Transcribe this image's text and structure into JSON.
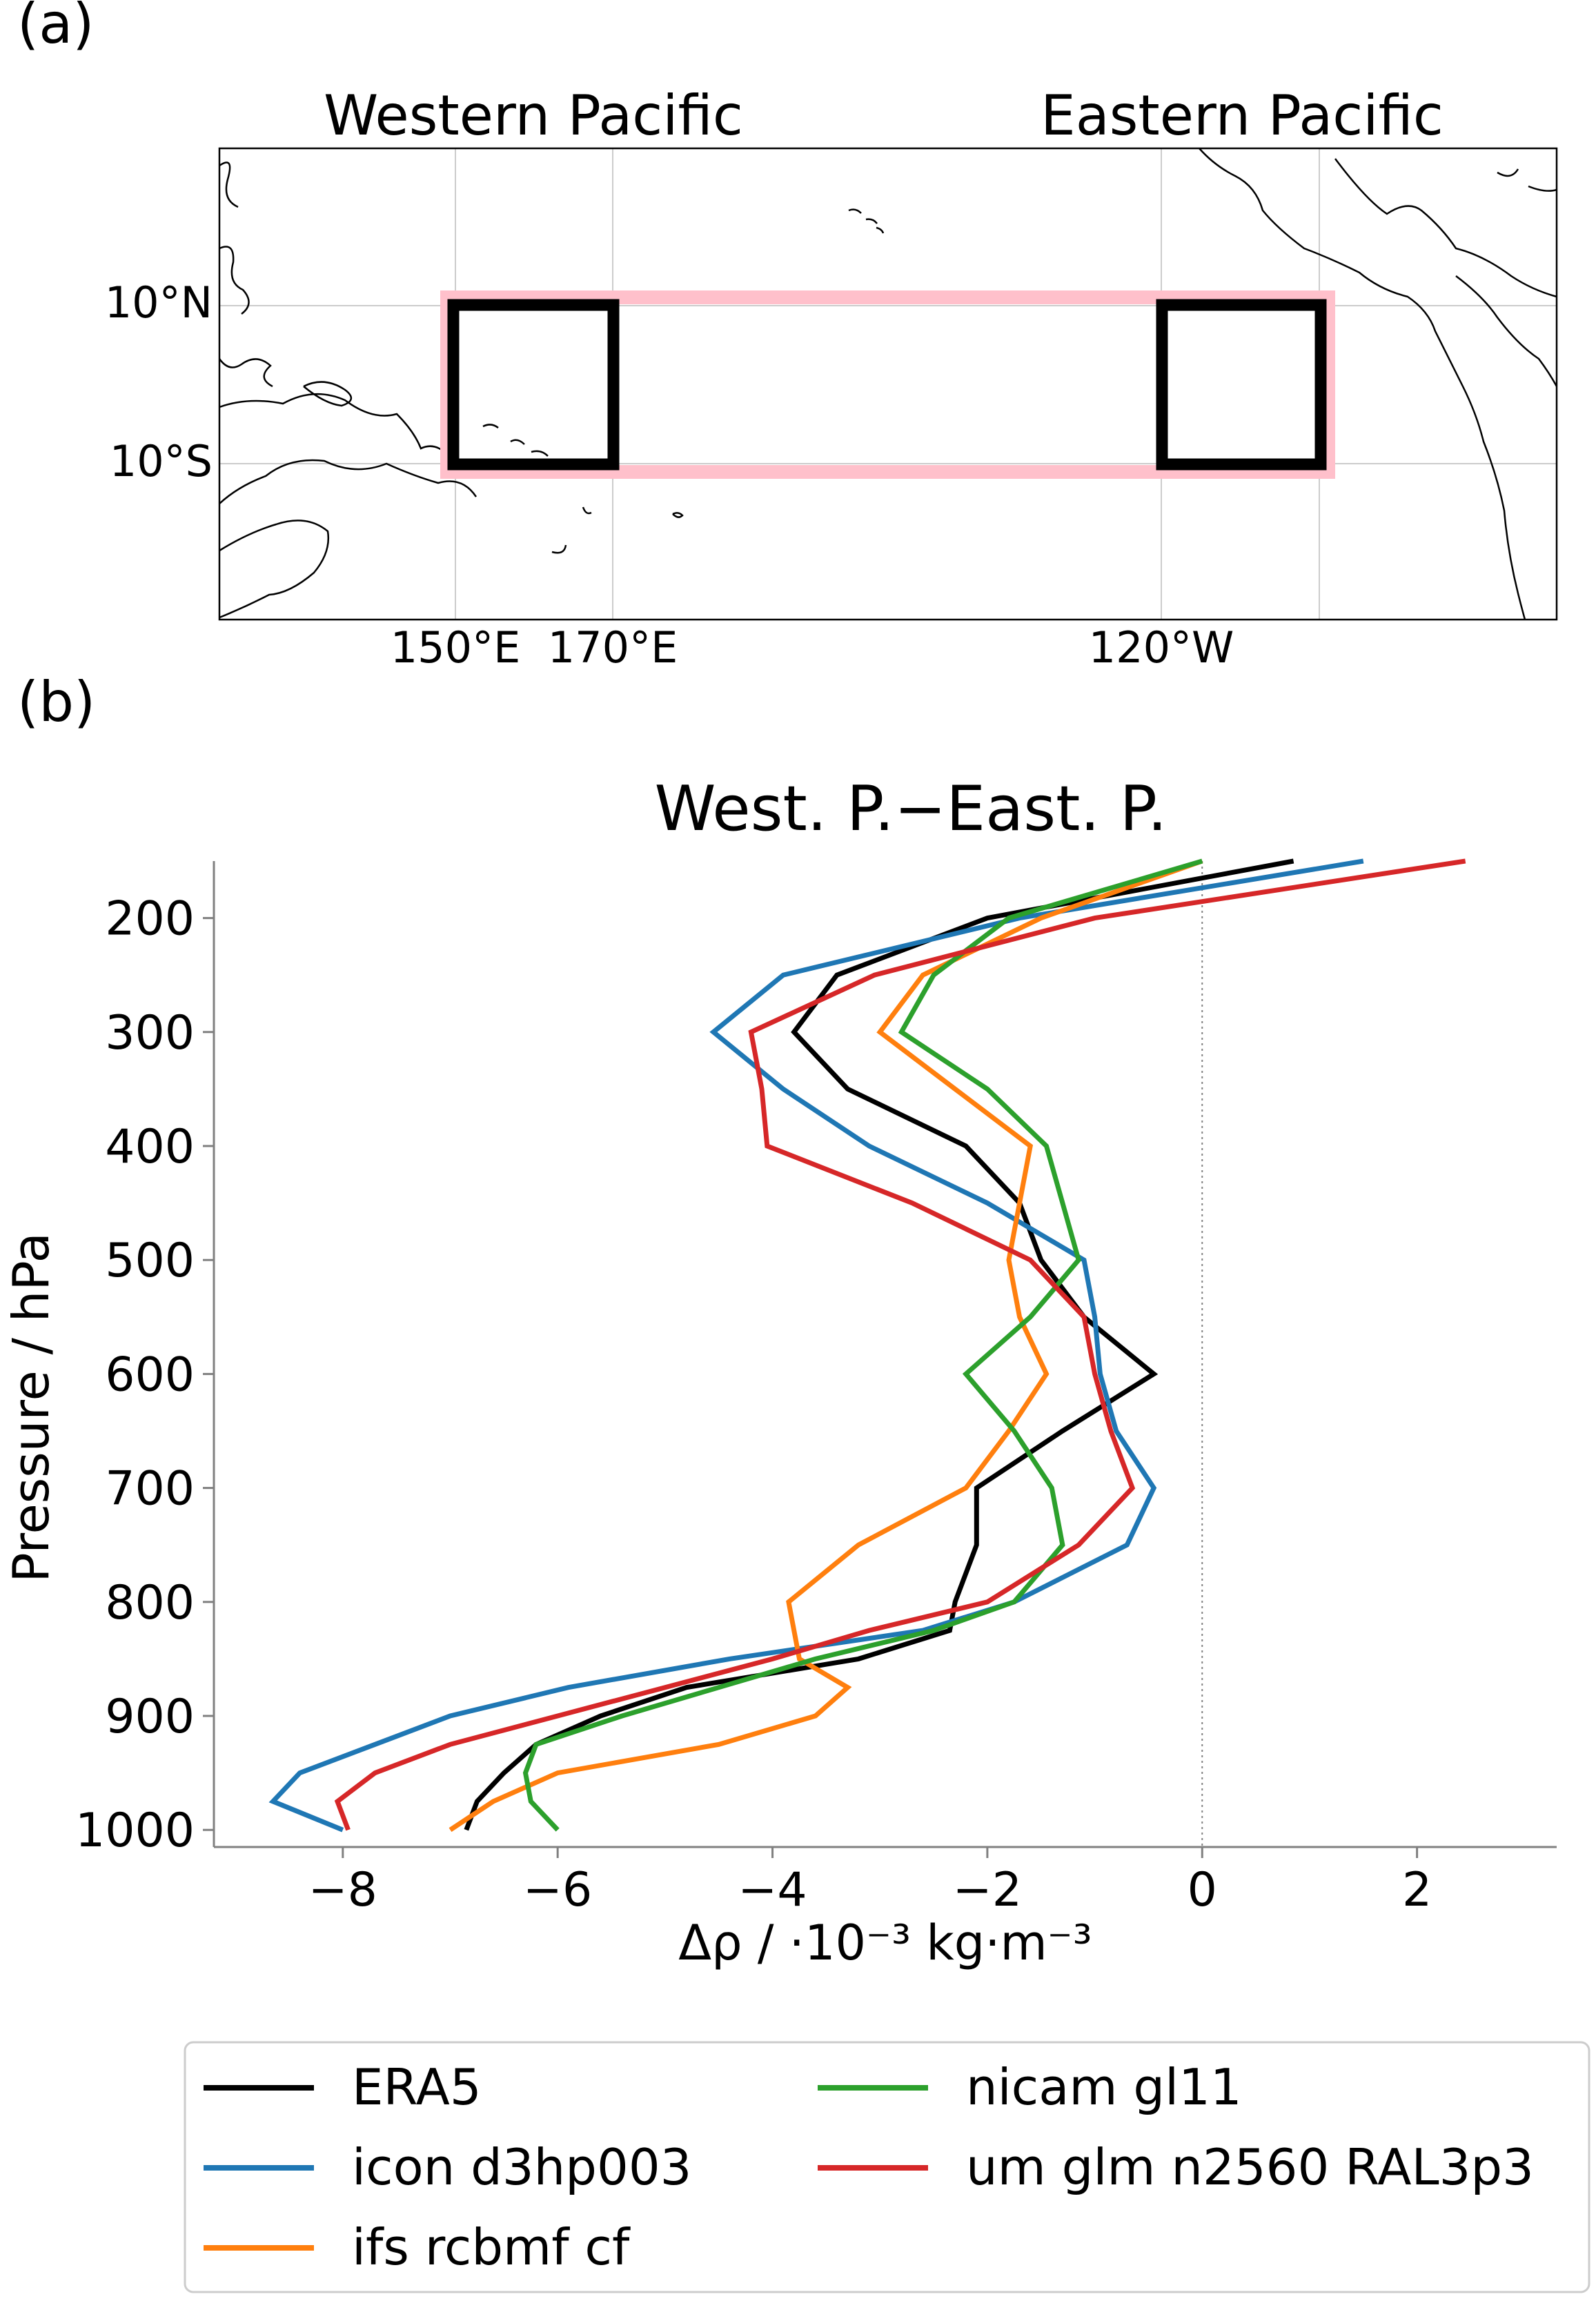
{
  "panel_a": {
    "label": "(a)",
    "region_labels": [
      "Western Pacific",
      "Eastern Pacific"
    ],
    "lat_ticks": [
      "10°N",
      "10°S"
    ],
    "lon_ticks": [
      "150°E",
      "170°E",
      "120°W"
    ],
    "colors": {
      "box": "#000000",
      "band": "#ffc0cb",
      "coast": "#000000",
      "grid": "#cccccc"
    }
  },
  "panel_b": {
    "label": "(b)"
  },
  "chart_data": {
    "type": "line",
    "title": "West. P.−East. P.",
    "xlabel": "Δρ / ·10⁻³ kg·m⁻³",
    "ylabel": "Pressure / hPa",
    "xlim": [
      -9.2,
      3.3
    ],
    "ylim": [
      1015,
      150
    ],
    "y_inverted": true,
    "xticks": [
      -8,
      -6,
      -4,
      -2,
      0,
      2
    ],
    "yticks": [
      200,
      300,
      400,
      500,
      600,
      700,
      800,
      900,
      1000
    ],
    "pressure_levels": [
      150,
      200,
      250,
      300,
      350,
      400,
      450,
      500,
      550,
      600,
      650,
      700,
      750,
      800,
      825,
      850,
      875,
      900,
      925,
      950,
      975,
      1000
    ],
    "zero_line": true,
    "legend_position": "bottom",
    "series": [
      {
        "name": "ERA5",
        "color": "#000000",
        "values": [
          0.85,
          -2.0,
          -3.4,
          -3.8,
          -3.3,
          -2.2,
          -1.7,
          -1.5,
          -1.1,
          -0.45,
          -1.3,
          -2.1,
          -2.1,
          -2.3,
          -2.35,
          -3.2,
          -4.8,
          -5.6,
          -6.2,
          -6.5,
          -6.75,
          -6.85
        ]
      },
      {
        "name": "icon d3hp003",
        "color": "#1f77b4",
        "values": [
          1.5,
          -1.7,
          -3.9,
          -4.55,
          -3.9,
          -3.1,
          -2.0,
          -1.1,
          -1.0,
          -0.95,
          -0.8,
          -0.45,
          -0.7,
          -1.75,
          -2.6,
          -4.4,
          -5.9,
          -7.0,
          -7.7,
          -8.4,
          -8.65,
          -8.0
        ]
      },
      {
        "name": "ifs rcbmf cf",
        "color": "#ff7f0e",
        "values": [
          0.0,
          -1.5,
          -2.6,
          -3.0,
          -2.3,
          -1.6,
          -1.7,
          -1.8,
          -1.7,
          -1.45,
          -1.8,
          -2.2,
          -3.2,
          -3.85,
          -3.8,
          -3.75,
          -3.3,
          -3.6,
          -4.5,
          -6.0,
          -6.6,
          -7.0
        ]
      },
      {
        "name": "nicam gl11",
        "color": "#2ca02c",
        "values": [
          0.0,
          -1.8,
          -2.5,
          -2.8,
          -2.0,
          -1.45,
          -1.3,
          -1.15,
          -1.6,
          -2.2,
          -1.75,
          -1.4,
          -1.3,
          -1.75,
          -2.5,
          -3.6,
          -4.5,
          -5.4,
          -6.2,
          -6.3,
          -6.25,
          -6.0
        ]
      },
      {
        "name": "um glm n2560 RAL3p3",
        "color": "#d62728",
        "values": [
          2.45,
          -1.0,
          -3.05,
          -4.2,
          -4.1,
          -4.05,
          -2.7,
          -1.6,
          -1.1,
          -1.0,
          -0.85,
          -0.65,
          -1.15,
          -2.0,
          -3.1,
          -4.0,
          -5.0,
          -6.0,
          -7.0,
          -7.7,
          -8.05,
          -7.95
        ]
      }
    ]
  }
}
